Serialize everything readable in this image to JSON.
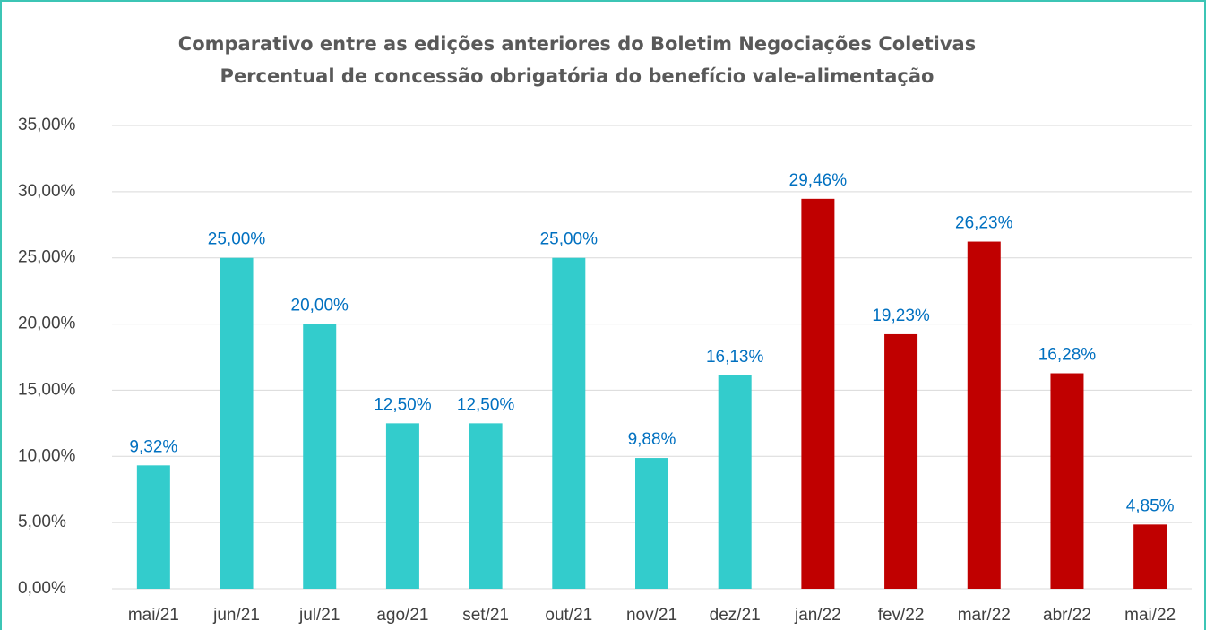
{
  "chart_data": {
    "type": "bar",
    "title": "Comparativo entre as edições anteriores do Boletim Negociações Coletivas",
    "subtitle": "Percentual de concessão obrigatória do benefício vale-alimentação",
    "categories": [
      "mai/21",
      "jun/21",
      "jul/21",
      "ago/21",
      "set/21",
      "out/21",
      "nov/21",
      "dez/21",
      "jan/22",
      "fev/22",
      "mar/22",
      "abr/22",
      "mai/22"
    ],
    "values": [
      9.32,
      25.0,
      20.0,
      12.5,
      12.5,
      25.0,
      9.88,
      16.13,
      29.46,
      19.23,
      26.23,
      16.28,
      4.85
    ],
    "value_labels": [
      "9,32%",
      "25,00%",
      "20,00%",
      "12,50%",
      "12,50%",
      "25,00%",
      "9,88%",
      "16,13%",
      "29,46%",
      "19,23%",
      "26,23%",
      "16,28%",
      "4,85%"
    ],
    "colors": [
      "#33cccc",
      "#33cccc",
      "#33cccc",
      "#33cccc",
      "#33cccc",
      "#33cccc",
      "#33cccc",
      "#33cccc",
      "#c00000",
      "#c00000",
      "#c00000",
      "#c00000",
      "#c00000"
    ],
    "ylim": [
      0,
      35
    ],
    "yticks": [
      {
        "value": 0,
        "label": "0,00%"
      },
      {
        "value": 5,
        "label": "5,00%"
      },
      {
        "value": 10,
        "label": "10,00%"
      },
      {
        "value": 15,
        "label": "15,00%"
      },
      {
        "value": 20,
        "label": "20,00%"
      },
      {
        "value": 25,
        "label": "25,00%"
      },
      {
        "value": 30,
        "label": "30,00%"
      },
      {
        "value": 35,
        "label": "35,00%"
      }
    ],
    "grid": true
  }
}
